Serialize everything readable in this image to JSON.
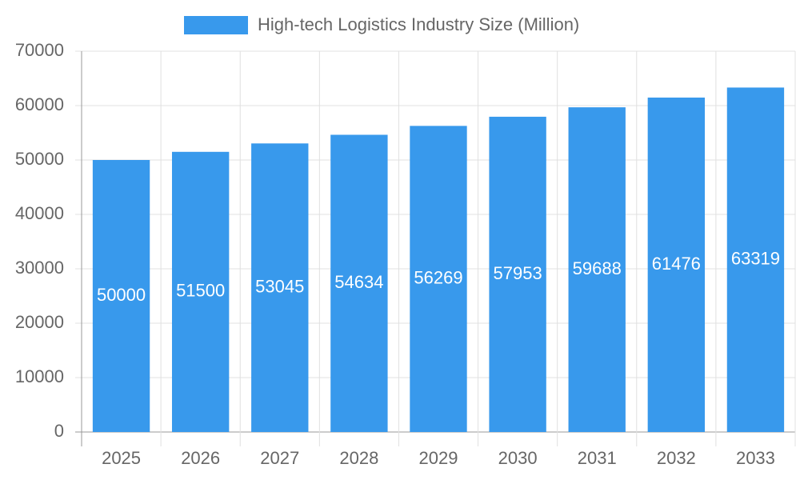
{
  "chart_data": {
    "type": "bar",
    "categories": [
      "2025",
      "2026",
      "2027",
      "2028",
      "2029",
      "2030",
      "2031",
      "2032",
      "2033"
    ],
    "series": [
      {
        "name": "High-tech Logistics Industry Size (Million)",
        "color": "#3899ec",
        "values": [
          50000,
          51500,
          53045,
          54634,
          56269,
          57953,
          59688,
          61476,
          63319
        ]
      }
    ],
    "ylim": [
      0,
      70000
    ],
    "yticks": [
      0,
      10000,
      20000,
      30000,
      40000,
      50000,
      60000,
      70000
    ],
    "grid": true,
    "legend": "top"
  }
}
